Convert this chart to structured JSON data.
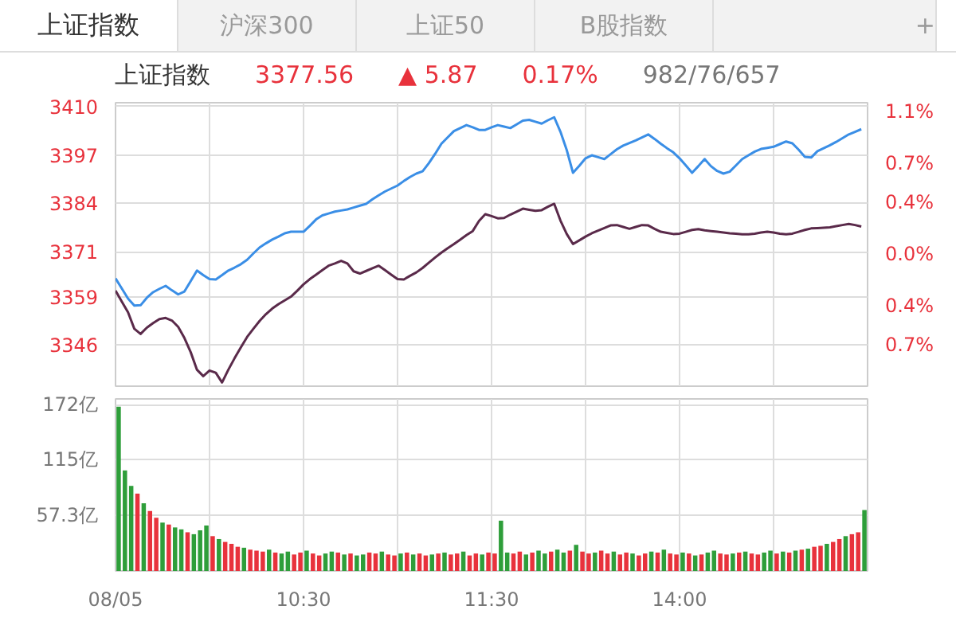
{
  "chart_data": [
    {
      "type": "line",
      "title": "上证指数",
      "annotations": [
        "上证指数",
        "沪深300",
        "上证50",
        "B股指数",
        "+",
        "3377.56",
        "▲ 5.87",
        "0.17%",
        "982/76/657"
      ],
      "categories": [
        null,
        null,
        null,
        null,
        null,
        null,
        null,
        null,
        null,
        null,
        null,
        null,
        null,
        null,
        null,
        null,
        null,
        null,
        null,
        null,
        null,
        null,
        null,
        null,
        null,
        null,
        null,
        null,
        null,
        null,
        null,
        null,
        null,
        null,
        null,
        null,
        null,
        null,
        null,
        null,
        null,
        null,
        null,
        null,
        null,
        null,
        null,
        null,
        null,
        null,
        null,
        null,
        null,
        null,
        null,
        null,
        null,
        null,
        null,
        null,
        null,
        null,
        null,
        null,
        null,
        null,
        null,
        null,
        null,
        null,
        null,
        null,
        null,
        null,
        null,
        null,
        null,
        null,
        null,
        null,
        null,
        null,
        null,
        null,
        null,
        null,
        null,
        null,
        null,
        null,
        null,
        null,
        null,
        null,
        null,
        null,
        null,
        null,
        null,
        null,
        null,
        null,
        null,
        null,
        null,
        null,
        null,
        null,
        null,
        null,
        null,
        null,
        null,
        null,
        null,
        null,
        null,
        null,
        null,
        null
      ],
      "series": [
        {
          "color": "#3a8ee6",
          "values": [
            3363.9,
            3361.2,
            3358.5,
            3356.6,
            3356.7,
            3358.7,
            3360.2,
            3361.1,
            3361.9,
            3360.7,
            3359.6,
            3360.4,
            3363.2,
            3366.0,
            3364.8,
            3363.7,
            3363.6,
            3364.8,
            3366.0,
            3366.8,
            3367.7,
            3368.9,
            3370.6,
            3372.2,
            3373.3,
            3374.3,
            3375.1,
            3376.0,
            3376.4,
            3376.4,
            3376.4,
            3378.0,
            3379.7,
            3380.8,
            3381.3,
            3381.8,
            3382.1,
            3382.4,
            3382.9,
            3383.4,
            3383.9,
            3385.1,
            3386.2,
            3387.2,
            3388.0,
            3388.8,
            3390.0,
            3391.1,
            3392.0,
            3392.6,
            3394.8,
            3397.3,
            3400.0,
            3401.7,
            3403.4,
            3404.2,
            3405.0,
            3404.4,
            3403.7,
            3403.7,
            3404.4,
            3405.0,
            3404.6,
            3404.2,
            3405.2,
            3406.2,
            3406.4,
            3405.9,
            3405.4,
            3406.3,
            3407.1,
            3403.2,
            3398.3,
            3392.2,
            3394.1,
            3396.1,
            3396.9,
            3396.4,
            3395.9,
            3397.2,
            3398.5,
            3399.5,
            3400.2,
            3400.9,
            3401.7,
            3402.5,
            3401.3,
            3400.0,
            3398.8,
            3397.7,
            3396.1,
            3394.2,
            3392.2,
            3394.0,
            3395.9,
            3394.0,
            3392.7,
            3392.0,
            3392.5,
            3394.2,
            3395.9,
            3396.9,
            3397.9,
            3398.6,
            3398.9,
            3399.2,
            3399.9,
            3400.6,
            3400.1,
            3398.4,
            3396.5,
            3396.3,
            3398.0,
            3398.8,
            3399.6,
            3400.5,
            3401.5,
            3402.5,
            3403.2,
            3403.9
          ]
        },
        {
          "color": "#5a2a4a",
          "values": [
            3360.6,
            3357.7,
            3354.8,
            3350.4,
            3349.0,
            3350.7,
            3351.9,
            3353.0,
            3353.3,
            3352.6,
            3350.9,
            3347.9,
            3344.1,
            3339.4,
            3337.7,
            3339.2,
            3338.6,
            3336.0,
            3339.4,
            3342.5,
            3345.4,
            3348.2,
            3350.4,
            3352.5,
            3354.3,
            3355.8,
            3357.0,
            3358.0,
            3359.0,
            3360.6,
            3362.3,
            3363.7,
            3364.9,
            3366.1,
            3367.3,
            3367.9,
            3368.6,
            3367.9,
            3365.8,
            3365.2,
            3365.9,
            3366.6,
            3367.3,
            3366.1,
            3364.9,
            3363.7,
            3363.6,
            3364.6,
            3365.5,
            3366.7,
            3368.1,
            3369.5,
            3370.8,
            3372.0,
            3373.1,
            3374.3,
            3375.5,
            3376.6,
            3379.3,
            3381.1,
            3380.6,
            3380.0,
            3380.1,
            3381.0,
            3381.8,
            3382.6,
            3382.3,
            3382.0,
            3382.2,
            3383.1,
            3383.9,
            3379.4,
            3375.8,
            3373.1,
            3374.1,
            3375.1,
            3376.0,
            3376.7,
            3377.4,
            3378.1,
            3378.2,
            3377.7,
            3377.2,
            3377.7,
            3378.2,
            3378.1,
            3377.2,
            3376.4,
            3376.1,
            3375.8,
            3375.9,
            3376.4,
            3376.9,
            3377.1,
            3376.8,
            3376.6,
            3376.4,
            3376.2,
            3376.0,
            3375.9,
            3375.7,
            3375.7,
            3375.9,
            3376.2,
            3376.4,
            3376.2,
            3375.9,
            3375.7,
            3375.9,
            3376.4,
            3376.9,
            3377.3,
            3377.4,
            3377.5,
            3377.6,
            3377.9,
            3378.2,
            3378.5,
            3378.2,
            3377.8
          ]
        }
      ],
      "ylim": [
        3335,
        3411
      ],
      "yticks": [
        3410,
        3397,
        3384,
        3371,
        3359,
        3346
      ],
      "y2lim": [
        -1.02,
        1.17
      ],
      "y2ticks": [
        {
          "value": 1.1,
          "label": "1.1%"
        },
        {
          "value": 0.7,
          "label": "0.7%"
        },
        {
          "value": 0.4,
          "label": "0.4%"
        },
        {
          "value": 0.0,
          "label": "0.0%"
        },
        {
          "value": -0.4,
          "label": "0.4%"
        },
        {
          "value": -0.7,
          "label": "0.7%"
        }
      ],
      "tick_labels": "y",
      "grid": true,
      "marker": "none",
      "line_style": "solid"
    },
    {
      "type": "bar",
      "categories": [
        "08/05",
        null,
        null,
        null,
        null,
        null,
        null,
        null,
        null,
        null,
        null,
        null,
        null,
        null,
        null,
        null,
        null,
        null,
        null,
        null,
        null,
        null,
        null,
        null,
        null,
        null,
        null,
        null,
        null,
        null,
        "10:30",
        null,
        null,
        null,
        null,
        null,
        null,
        null,
        null,
        null,
        null,
        null,
        null,
        null,
        null,
        null,
        null,
        null,
        null,
        null,
        null,
        null,
        null,
        null,
        null,
        null,
        null,
        null,
        null,
        null,
        "11:30",
        null,
        null,
        null,
        null,
        null,
        null,
        null,
        null,
        null,
        null,
        null,
        null,
        null,
        null,
        null,
        null,
        null,
        null,
        null,
        null,
        null,
        null,
        null,
        null,
        null,
        null,
        null,
        null,
        null,
        "14:00",
        null,
        null,
        null,
        null,
        null,
        null,
        null,
        null,
        null,
        null,
        null,
        null,
        null,
        null,
        null,
        null,
        null,
        null,
        null,
        null,
        null,
        null,
        null,
        null,
        null,
        null,
        null,
        null,
        null
      ],
      "values": [
        170,
        104,
        88,
        80,
        70,
        62,
        55,
        50,
        48,
        45,
        43,
        40,
        38,
        42,
        47,
        36,
        33,
        30,
        28,
        25,
        24,
        22,
        21,
        20,
        22,
        19,
        18,
        20,
        17,
        19,
        21,
        18,
        16,
        18,
        20,
        19,
        17,
        18,
        16,
        17,
        19,
        18,
        20,
        17,
        16,
        18,
        19,
        17,
        18,
        16,
        17,
        18,
        19,
        17,
        18,
        20,
        16,
        18,
        17,
        19,
        18,
        52,
        19,
        18,
        20,
        17,
        19,
        21,
        18,
        20,
        22,
        19,
        21,
        27,
        20,
        18,
        19,
        21,
        18,
        20,
        17,
        19,
        18,
        16,
        18,
        20,
        19,
        22,
        18,
        17,
        19,
        18,
        16,
        17,
        19,
        21,
        18,
        17,
        18,
        19,
        20,
        18,
        17,
        19,
        21,
        18,
        20,
        19,
        21,
        22,
        23,
        25,
        26,
        28,
        30,
        33,
        36,
        38,
        40,
        63
      ],
      "colors": [
        "#2e9e3a",
        "#2e9e3a",
        "#2e9e3a",
        "#e8323c",
        "#2e9e3a",
        "#e8323c",
        "#e8323c",
        "#2e9e3a",
        "#e8323c",
        "#2e9e3a",
        "#2e9e3a",
        "#e8323c",
        "#2e9e3a",
        "#2e9e3a",
        "#2e9e3a",
        "#e8323c",
        "#2e9e3a",
        "#e8323c",
        "#e8323c",
        "#e8323c",
        "#2e9e3a",
        "#e8323c",
        "#e8323c",
        "#e8323c",
        "#2e9e3a",
        "#e8323c",
        "#2e9e3a",
        "#2e9e3a",
        "#e8323c",
        "#e8323c",
        "#2e9e3a",
        "#e8323c",
        "#e8323c",
        "#2e9e3a",
        "#2e9e3a",
        "#e8323c",
        "#2e9e3a",
        "#e8323c",
        "#2e9e3a",
        "#2e9e3a",
        "#e8323c",
        "#e8323c",
        "#2e9e3a",
        "#e8323c",
        "#e8323c",
        "#2e9e3a",
        "#e8323c",
        "#2e9e3a",
        "#e8323c",
        "#e8323c",
        "#2e9e3a",
        "#e8323c",
        "#2e9e3a",
        "#e8323c",
        "#e8323c",
        "#2e9e3a",
        "#e8323c",
        "#e8323c",
        "#2e9e3a",
        "#e8323c",
        "#e8323c",
        "#2e9e3a",
        "#2e9e3a",
        "#e8323c",
        "#e8323c",
        "#2e9e3a",
        "#e8323c",
        "#2e9e3a",
        "#2e9e3a",
        "#e8323c",
        "#2e9e3a",
        "#2e9e3a",
        "#e8323c",
        "#2e9e3a",
        "#e8323c",
        "#e8323c",
        "#2e9e3a",
        "#e8323c",
        "#e8323c",
        "#2e9e3a",
        "#e8323c",
        "#e8323c",
        "#2e9e3a",
        "#e8323c",
        "#e8323c",
        "#2e9e3a",
        "#e8323c",
        "#2e9e3a",
        "#e8323c",
        "#e8323c",
        "#2e9e3a",
        "#e8323c",
        "#2e9e3a",
        "#e8323c",
        "#2e9e3a",
        "#2e9e3a",
        "#e8323c",
        "#e8323c",
        "#2e9e3a",
        "#e8323c",
        "#2e9e3a",
        "#e8323c",
        "#e8323c",
        "#2e9e3a",
        "#2e9e3a",
        "#e8323c",
        "#2e9e3a",
        "#e8323c",
        "#2e9e3a",
        "#e8323c",
        "#2e9e3a",
        "#e8323c",
        "#e8323c",
        "#2e9e3a",
        "#e8323c",
        "#e8323c",
        "#2e9e3a",
        "#e8323c",
        "#e8323c",
        "#2e9e3a"
      ],
      "ylim": [
        0,
        178
      ],
      "yticks": [
        {
          "value": 57.3,
          "label": "57.3亿"
        },
        {
          "value": 115,
          "label": "115亿"
        },
        {
          "value": 172,
          "label": "172亿"
        }
      ],
      "grid": true
    }
  ]
}
